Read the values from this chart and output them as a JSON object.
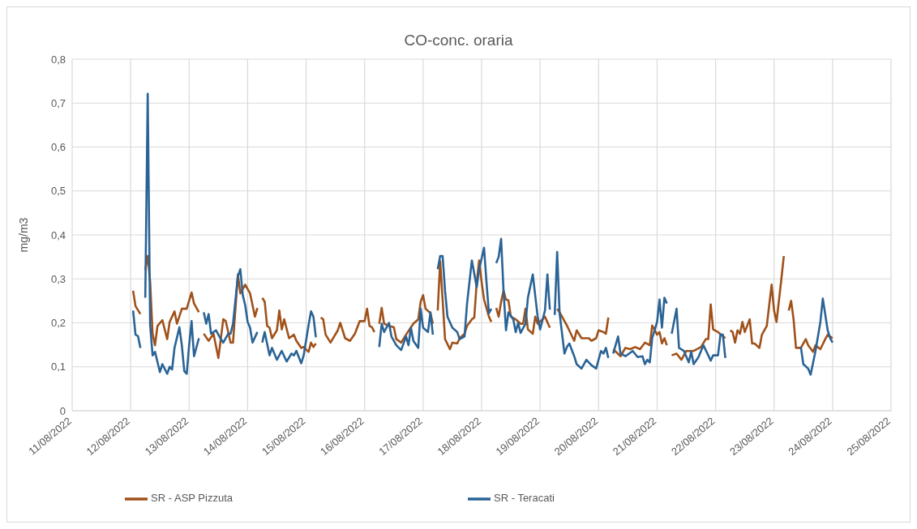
{
  "chart_data": {
    "type": "line",
    "title": "CO-conc. oraria",
    "ylabel": "mg/m3",
    "xlim": [
      "2022-08-11",
      "2022-08-25"
    ],
    "xticks": [
      {
        "value": "2022-08-11",
        "label": "11/08/2022"
      },
      {
        "value": "2022-08-12",
        "label": "12/08/2022"
      },
      {
        "value": "2022-08-13",
        "label": "13/08/2022"
      },
      {
        "value": "2022-08-14",
        "label": "14/08/2022"
      },
      {
        "value": "2022-08-15",
        "label": "15/08/2022"
      },
      {
        "value": "2022-08-16",
        "label": "16/08/2022"
      },
      {
        "value": "2022-08-17",
        "label": "17/08/2022"
      },
      {
        "value": "2022-08-18",
        "label": "18/08/2022"
      },
      {
        "value": "2022-08-19",
        "label": "19/08/2022"
      },
      {
        "value": "2022-08-20",
        "label": "20/08/2022"
      },
      {
        "value": "2022-08-21",
        "label": "21/08/2022"
      },
      {
        "value": "2022-08-22",
        "label": "22/08/2022"
      },
      {
        "value": "2022-08-23",
        "label": "23/08/2022"
      },
      {
        "value": "2022-08-24",
        "label": "24/08/2022"
      },
      {
        "value": "2022-08-25",
        "label": "25/08/2022"
      }
    ],
    "ylim": [
      0,
      0.8
    ],
    "yticks": [
      0,
      {
        "value": 0.1,
        "label": "0,1"
      },
      {
        "value": 0.2,
        "label": "0,2"
      },
      {
        "value": 0.3,
        "label": "0,3"
      },
      {
        "value": 0.4,
        "label": "0,4"
      },
      {
        "value": 0.5,
        "label": "0,5"
      },
      {
        "value": 0.6,
        "label": "0,6"
      },
      {
        "value": 0.7,
        "label": "0,7"
      },
      {
        "value": 0.8,
        "label": "0,8"
      }
    ],
    "grid": true,
    "legend": "bottom",
    "series": [
      {
        "name": "SR - ASP Pizzuta",
        "color": "#a0511a",
        "x": [
          "2022-08-12T01:00",
          "2022-08-12T02:00",
          "2022-08-12T04:00",
          "2022-08-12T05:00",
          "2022-08-12T06:00",
          "2022-08-12T07:00",
          "2022-08-12T08:00",
          "2022-08-12T09:00",
          "2022-08-12T10:00",
          "2022-08-12T11:00",
          "2022-08-12T13:00",
          "2022-08-12T15:00",
          "2022-08-12T16:00",
          "2022-08-12T18:00",
          "2022-08-12T19:00",
          "2022-08-12T21:00",
          "2022-08-12T23:00",
          "2022-08-13T01:00",
          "2022-08-13T02:00",
          "2022-08-13T04:00",
          "2022-08-13T05:00",
          "2022-08-13T06:00",
          "2022-08-13T08:00",
          "2022-08-13T10:00",
          "2022-08-13T12:00",
          "2022-08-13T14:00",
          "2022-08-13T15:00",
          "2022-08-13T17:00",
          "2022-08-13T18:00",
          "2022-08-13T20:00",
          "2022-08-13T21:00",
          "2022-08-13T23:00",
          "2022-08-14T01:00",
          "2022-08-14T03:00",
          "2022-08-14T04:00",
          "2022-08-14T05:00",
          "2022-08-14T06:00",
          "2022-08-14T07:00",
          "2022-08-14T08:00",
          "2022-08-14T09:00",
          "2022-08-14T10:00",
          "2022-08-14T12:00",
          "2022-08-14T13:00",
          "2022-08-14T14:00",
          "2022-08-14T15:00",
          "2022-08-14T17:00",
          "2022-08-14T19:00",
          "2022-08-14T20:00",
          "2022-08-14T22:00",
          "2022-08-14T23:00",
          "2022-08-15T01:00",
          "2022-08-15T02:00",
          "2022-08-15T03:00",
          "2022-08-15T04:00",
          "2022-08-15T05:00",
          "2022-08-15T06:00",
          "2022-08-15T07:00",
          "2022-08-15T08:00",
          "2022-08-15T10:00",
          "2022-08-15T13:00",
          "2022-08-15T14:00",
          "2022-08-15T16:00",
          "2022-08-15T18:00",
          "2022-08-15T20:00",
          "2022-08-15T22:00",
          "2022-08-16T00:00",
          "2022-08-16T01:00",
          "2022-08-16T02:00",
          "2022-08-16T03:00",
          "2022-08-16T04:00",
          "2022-08-16T05:00",
          "2022-08-16T06:00",
          "2022-08-16T07:00",
          "2022-08-16T08:00",
          "2022-08-16T10:00",
          "2022-08-16T12:00",
          "2022-08-16T13:00",
          "2022-08-16T15:00",
          "2022-08-16T17:00",
          "2022-08-16T20:00",
          "2022-08-16T22:00",
          "2022-08-16T23:00",
          "2022-08-17T00:00",
          "2022-08-17T01:00",
          "2022-08-17T03:00",
          "2022-08-17T04:00",
          "2022-08-17T05:00",
          "2022-08-17T06:00",
          "2022-08-17T07:00",
          "2022-08-17T08:00",
          "2022-08-17T09:00",
          "2022-08-17T11:00",
          "2022-08-17T12:00",
          "2022-08-17T14:00",
          "2022-08-17T15:00",
          "2022-08-17T17:00",
          "2022-08-17T18:00",
          "2022-08-17T20:00",
          "2022-08-17T21:00",
          "2022-08-17T22:00",
          "2022-08-17T23:00",
          "2022-08-18T00:00",
          "2022-08-18T01:00",
          "2022-08-18T03:00",
          "2022-08-18T04:00",
          "2022-08-18T05:00",
          "2022-08-18T06:00",
          "2022-08-18T07:00",
          "2022-08-18T08:00",
          "2022-08-18T09:00",
          "2022-08-18T10:00",
          "2022-08-18T11:00",
          "2022-08-18T12:00",
          "2022-08-18T14:00",
          "2022-08-18T16:00",
          "2022-08-18T17:00",
          "2022-08-18T18:00",
          "2022-08-18T19:00",
          "2022-08-18T21:00",
          "2022-08-18T22:00",
          "2022-08-18T23:00",
          "2022-08-19T01:00",
          "2022-08-19T02:00",
          "2022-08-19T04:00",
          "2022-08-19T05:00",
          "2022-08-19T07:00",
          "2022-08-19T08:00",
          "2022-08-19T10:00",
          "2022-08-19T11:00",
          "2022-08-19T14:00",
          "2022-08-19T15:00",
          "2022-08-19T17:00",
          "2022-08-19T20:00",
          "2022-08-19T21:00",
          "2022-08-19T23:00",
          "2022-08-20T00:00",
          "2022-08-20T02:00",
          "2022-08-20T03:00",
          "2022-08-20T04:00",
          "2022-08-20T05:00",
          "2022-08-20T06:00",
          "2022-08-20T09:00",
          "2022-08-20T11:00",
          "2022-08-20T13:00",
          "2022-08-20T15:00",
          "2022-08-20T17:00",
          "2022-08-20T19:00",
          "2022-08-20T21:00",
          "2022-08-20T22:00",
          "2022-08-21T00:00",
          "2022-08-21T01:00",
          "2022-08-21T02:00",
          "2022-08-21T03:00",
          "2022-08-21T04:00",
          "2022-08-21T05:00",
          "2022-08-21T06:00",
          "2022-08-21T08:00",
          "2022-08-21T10:00",
          "2022-08-21T12:00",
          "2022-08-21T15:00",
          "2022-08-21T18:00",
          "2022-08-21T20:00",
          "2022-08-21T21:00",
          "2022-08-21T22:00",
          "2022-08-21T23:00",
          "2022-08-22T01:00",
          "2022-08-22T04:00",
          "2022-08-22T05:00",
          "2022-08-22T06:00",
          "2022-08-22T07:00",
          "2022-08-22T08:00",
          "2022-08-22T09:00",
          "2022-08-22T10:00",
          "2022-08-22T11:00",
          "2022-08-22T12:00",
          "2022-08-22T14:00",
          "2022-08-22T15:00",
          "2022-08-22T16:00",
          "2022-08-22T18:00",
          "2022-08-22T19:00",
          "2022-08-22T21:00",
          "2022-08-22T23:00",
          "2022-08-23T00:00",
          "2022-08-23T01:00",
          "2022-08-23T03:00",
          "2022-08-23T04:00",
          "2022-08-23T05:00",
          "2022-08-23T06:00",
          "2022-08-23T07:00",
          "2022-08-23T08:00",
          "2022-08-23T09:00",
          "2022-08-23T11:00",
          "2022-08-23T13:00",
          "2022-08-23T14:00",
          "2022-08-23T16:00",
          "2022-08-23T17:00",
          "2022-08-23T19:00",
          "2022-08-23T21:00",
          "2022-08-23T22:00",
          "2022-08-24T00:00"
        ],
        "values": [
          0.273,
          0.238,
          0.22,
          null,
          0.32,
          0.352,
          0.293,
          0.175,
          0.149,
          0.193,
          0.206,
          0.163,
          0.202,
          0.226,
          0.198,
          0.232,
          0.232,
          0.269,
          0.244,
          0.224,
          null,
          0.175,
          0.159,
          0.175,
          0.12,
          0.208,
          0.204,
          0.155,
          0.155,
          0.31,
          0.267,
          0.287,
          0.267,
          0.214,
          0.234,
          null,
          0.257,
          0.248,
          0.193,
          0.189,
          0.165,
          0.183,
          0.228,
          0.185,
          0.208,
          0.165,
          0.173,
          0.159,
          0.143,
          0.145,
          0.134,
          0.155,
          0.145,
          0.153,
          null,
          0.212,
          0.208,
          0.173,
          0.155,
          0.183,
          0.2,
          0.165,
          0.159,
          0.175,
          0.204,
          0.204,
          0.232,
          0.193,
          0.19,
          0.179,
          null,
          0.198,
          0.234,
          0.198,
          0.193,
          0.19,
          0.163,
          0.155,
          0.173,
          0.198,
          0.208,
          0.248,
          0.263,
          0.232,
          0.222,
          0.198,
          null,
          0.228,
          0.34,
          0.253,
          0.163,
          0.14,
          0.155,
          0.153,
          0.165,
          0.175,
          0.193,
          0.208,
          0.212,
          0.293,
          0.342,
          0.293,
          0.253,
          0.214,
          0.202,
          null,
          0.234,
          0.214,
          0.248,
          0.273,
          0.253,
          0.251,
          0.214,
          0.208,
          0.198,
          0.198,
          0.232,
          0.185,
          0.175,
          0.214,
          0.198,
          0.208,
          0.214,
          0.189,
          null,
          0.232,
          0.224,
          0.204,
          0.194,
          0.159,
          0.183,
          0.165,
          0.165,
          0.159,
          0.165,
          0.183,
          0.179,
          0.175,
          0.212,
          null,
          0.14,
          0.124,
          0.143,
          0.14,
          0.145,
          0.14,
          0.155,
          0.149,
          0.194,
          0.173,
          0.179,
          0.153,
          0.165,
          0.149,
          null,
          0.126,
          0.13,
          0.116,
          0.136,
          0.136,
          0.145,
          0.163,
          0.163,
          0.242,
          0.185,
          0.179,
          0.165,
          null,
          0.183,
          0.179,
          0.155,
          0.183,
          0.175,
          0.202,
          0.179,
          0.208,
          0.153,
          0.153,
          0.143,
          0.173,
          0.193,
          0.287,
          0.228,
          0.202,
          0.3,
          0.352,
          null,
          0.228,
          0.25,
          0.208,
          0.143,
          0.143,
          0.163,
          0.149,
          0.134,
          0.149,
          0.14,
          0.163,
          0.173,
          0.165
        ]
      },
      {
        "name": "SR - Teracati",
        "color": "#2a6396",
        "x": [
          "2022-08-12T01:00",
          "2022-08-12T02:00",
          "2022-08-12T03:00",
          "2022-08-12T04:00",
          "2022-08-12T05:00",
          "2022-08-12T06:00",
          "2022-08-12T07:00",
          "2022-08-12T08:00",
          "2022-08-12T09:00",
          "2022-08-12T10:00",
          "2022-08-12T12:00",
          "2022-08-12T13:00",
          "2022-08-12T15:00",
          "2022-08-12T16:00",
          "2022-08-12T17:00",
          "2022-08-12T18:00",
          "2022-08-12T20:00",
          "2022-08-12T21:00",
          "2022-08-12T22:00",
          "2022-08-12T23:00",
          "2022-08-13T00:00",
          "2022-08-13T01:00",
          "2022-08-13T02:00",
          "2022-08-13T04:00",
          "2022-08-13T05:00",
          "2022-08-13T06:00",
          "2022-08-13T07:00",
          "2022-08-13T08:00",
          "2022-08-13T09:00",
          "2022-08-13T11:00",
          "2022-08-13T13:00",
          "2022-08-13T14:00",
          "2022-08-13T16:00",
          "2022-08-13T17:00",
          "2022-08-13T18:00",
          "2022-08-13T20:00",
          "2022-08-13T21:00",
          "2022-08-13T22:00",
          "2022-08-13T23:00",
          "2022-08-14T00:00",
          "2022-08-14T01:00",
          "2022-08-14T02:00",
          "2022-08-14T04:00",
          "2022-08-14T05:00",
          "2022-08-14T06:00",
          "2022-08-14T07:00",
          "2022-08-14T09:00",
          "2022-08-14T10:00",
          "2022-08-14T12:00",
          "2022-08-14T14:00",
          "2022-08-14T16:00",
          "2022-08-14T18:00",
          "2022-08-14T19:00",
          "2022-08-14T20:00",
          "2022-08-14T22:00",
          "2022-08-14T23:00",
          "2022-08-15T01:00",
          "2022-08-15T02:00",
          "2022-08-15T03:00",
          "2022-08-15T04:00",
          "2022-08-15T05:00",
          "2022-08-16T06:00",
          "2022-08-16T07:00",
          "2022-08-16T08:00",
          "2022-08-16T10:00",
          "2022-08-16T11:00",
          "2022-08-16T13:00",
          "2022-08-16T15:00",
          "2022-08-16T17:00",
          "2022-08-16T18:00",
          "2022-08-16T19:00",
          "2022-08-16T20:00",
          "2022-08-16T22:00",
          "2022-08-16T23:00",
          "2022-08-17T00:00",
          "2022-08-17T02:00",
          "2022-08-17T03:00",
          "2022-08-17T04:00",
          "2022-08-17T05:00",
          "2022-08-17T06:00",
          "2022-08-17T07:00",
          "2022-08-17T08:00",
          "2022-08-17T09:00",
          "2022-08-17T10:00",
          "2022-08-17T12:00",
          "2022-08-17T14:00",
          "2022-08-17T15:00",
          "2022-08-17T17:00",
          "2022-08-17T18:00",
          "2022-08-17T20:00",
          "2022-08-17T22:00",
          "2022-08-17T23:00",
          "2022-08-18T01:00",
          "2022-08-18T02:00",
          "2022-08-18T03:00",
          "2022-08-18T04:00",
          "2022-08-18T05:00",
          "2022-08-18T06:00",
          "2022-08-18T07:00",
          "2022-08-18T08:00",
          "2022-08-18T09:00",
          "2022-08-18T10:00",
          "2022-08-18T11:00",
          "2022-08-18T13:00",
          "2022-08-18T14:00",
          "2022-08-18T15:00",
          "2022-08-18T16:00",
          "2022-08-18T18:00",
          "2022-08-18T19:00",
          "2022-08-18T21:00",
          "2022-08-18T23:00",
          "2022-08-19T00:00",
          "2022-08-19T02:00",
          "2022-08-19T03:00",
          "2022-08-19T04:00",
          "2022-08-19T05:00",
          "2022-08-19T06:00",
          "2022-08-19T07:00",
          "2022-08-19T08:00",
          "2022-08-19T10:00",
          "2022-08-19T11:00",
          "2022-08-19T12:00",
          "2022-08-19T14:00",
          "2022-08-19T15:00",
          "2022-08-19T17:00",
          "2022-08-19T19:00",
          "2022-08-19T21:00",
          "2022-08-19T23:00",
          "2022-08-20T01:00",
          "2022-08-20T02:00",
          "2022-08-20T03:00",
          "2022-08-20T04:00",
          "2022-08-20T05:00",
          "2022-08-20T06:00",
          "2022-08-20T08:00",
          "2022-08-20T09:00",
          "2022-08-20T11:00",
          "2022-08-20T14:00",
          "2022-08-20T16:00",
          "2022-08-20T18:00",
          "2022-08-20T19:00",
          "2022-08-20T20:00",
          "2022-08-20T21:00",
          "2022-08-20T22:00",
          "2022-08-21T00:00",
          "2022-08-21T01:00",
          "2022-08-21T02:00",
          "2022-08-21T03:00",
          "2022-08-21T04:00",
          "2022-08-21T05:00",
          "2022-08-21T06:00",
          "2022-08-21T08:00",
          "2022-08-21T09:00",
          "2022-08-21T11:00",
          "2022-08-21T13:00",
          "2022-08-21T14:00",
          "2022-08-21T15:00",
          "2022-08-21T17:00",
          "2022-08-21T19:00",
          "2022-08-21T21:00",
          "2022-08-21T22:00",
          "2022-08-21T23:00",
          "2022-08-22T01:00",
          "2022-08-22T02:00",
          "2022-08-22T03:00",
          "2022-08-22T04:00",
          "2022-08-22T05:00",
          "2022-08-23T11:00",
          "2022-08-23T12:00",
          "2022-08-23T14:00",
          "2022-08-23T15:00",
          "2022-08-23T17:00",
          "2022-08-23T19:00",
          "2022-08-23T20:00",
          "2022-08-23T22:00",
          "2022-08-23T23:00",
          "2022-08-24T00:00"
        ],
        "values": [
          0.228,
          0.173,
          0.17,
          0.143,
          null,
          0.257,
          0.721,
          0.195,
          0.126,
          0.134,
          0.088,
          0.106,
          0.084,
          0.1,
          0.094,
          0.143,
          0.19,
          0.149,
          0.09,
          0.084,
          0.149,
          0.204,
          0.124,
          0.165,
          null,
          0.224,
          0.198,
          0.22,
          0.175,
          0.183,
          0.163,
          0.155,
          0.175,
          0.175,
          0.198,
          0.306,
          0.322,
          0.263,
          0.24,
          0.202,
          0.189,
          0.155,
          0.179,
          null,
          0.155,
          0.179,
          0.126,
          0.143,
          0.116,
          0.136,
          0.112,
          0.13,
          0.126,
          0.136,
          0.108,
          0.126,
          0.195,
          0.226,
          0.214,
          0.167,
          null,
          0.145,
          0.198,
          0.179,
          0.2,
          0.169,
          0.149,
          0.138,
          0.169,
          0.149,
          0.189,
          0.159,
          0.143,
          0.232,
          0.189,
          0.179,
          0.224,
          0.173,
          null,
          0.322,
          0.352,
          0.352,
          0.273,
          0.214,
          0.189,
          0.179,
          0.163,
          0.169,
          0.242,
          0.342,
          0.281,
          0.322,
          0.371,
          0.293,
          0.222,
          0.232,
          null,
          0.336,
          0.35,
          0.391,
          0.273,
          0.183,
          0.224,
          0.208,
          0.179,
          0.2,
          0.177,
          0.198,
          0.257,
          0.31,
          0.214,
          0.185,
          0.228,
          0.31,
          0.23,
          null,
          0.218,
          0.361,
          0.222,
          0.13,
          0.145,
          0.153,
          0.124,
          0.106,
          0.096,
          0.116,
          0.104,
          0.096,
          0.136,
          0.13,
          0.143,
          0.12,
          null,
          0.13,
          0.169,
          0.13,
          0.124,
          0.136,
          0.122,
          0.124,
          0.106,
          0.116,
          0.11,
          0.165,
          0.202,
          0.253,
          0.189,
          0.257,
          0.244,
          null,
          0.175,
          0.232,
          0.143,
          0.136,
          0.11,
          0.134,
          0.106,
          0.122,
          0.149,
          0.126,
          0.114,
          0.126,
          0.126,
          0.173,
          0.173,
          0.12,
          null,
          0.145,
          0.106,
          0.096,
          0.082,
          0.136,
          0.202,
          0.255,
          0.183,
          0.165,
          0.155
        ]
      }
    ]
  }
}
